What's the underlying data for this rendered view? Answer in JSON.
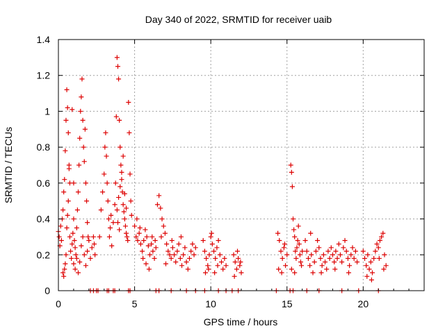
{
  "chart_data": {
    "type": "scatter",
    "title": "Day 340 of 2022, SRMTID for receiver uaib",
    "xlabel": "GPS time / hours",
    "ylabel": "SRMTID / TECUs",
    "xlim": [
      0,
      24
    ],
    "ylim": [
      0,
      1.4
    ],
    "xticks": [
      0,
      5,
      10,
      15,
      20
    ],
    "yticks": [
      0,
      0.2,
      0.4,
      0.6,
      0.8,
      1,
      1.2,
      1.4
    ],
    "xtick_labels": [
      "0",
      "5",
      "10",
      "15",
      "20"
    ],
    "ytick_labels": [
      "0",
      "0.2",
      "0.4",
      "0.6",
      "0.8",
      "1",
      "1.2",
      "1.4"
    ],
    "grid": true,
    "marker": "+",
    "color": "#dd0000",
    "series": [
      {
        "name": "SRMTID",
        "points": [
          [
            0.0,
            0.33
          ],
          [
            0.05,
            0.3
          ],
          [
            0.1,
            0.25
          ],
          [
            0.15,
            0.36
          ],
          [
            0.2,
            0.28
          ],
          [
            0.25,
            0.4
          ],
          [
            0.3,
            0.45
          ],
          [
            0.35,
            0.55
          ],
          [
            0.4,
            0.62
          ],
          [
            0.45,
            0.78
          ],
          [
            0.5,
            0.95
          ],
          [
            0.55,
            1.12
          ],
          [
            0.6,
            1.02
          ],
          [
            0.65,
            0.88
          ],
          [
            0.7,
            0.7
          ],
          [
            0.75,
            0.6
          ],
          [
            0.3,
            0.1
          ],
          [
            0.35,
            0.08
          ],
          [
            0.4,
            0.12
          ],
          [
            0.45,
            0.15
          ],
          [
            0.5,
            0.2
          ],
          [
            0.55,
            0.35
          ],
          [
            0.6,
            0.42
          ],
          [
            0.65,
            0.5
          ],
          [
            0.7,
            0.68
          ],
          [
            0.75,
            0.3
          ],
          [
            0.8,
            0.22
          ],
          [
            0.85,
            0.18
          ],
          [
            0.9,
            0.26
          ],
          [
            0.95,
            0.32
          ],
          [
            1.0,
            0.4
          ],
          [
            1.05,
            0.28
          ],
          [
            1.1,
            0.24
          ],
          [
            1.15,
            0.2
          ],
          [
            1.2,
            0.35
          ],
          [
            1.25,
            0.45
          ],
          [
            1.3,
            0.55
          ],
          [
            1.35,
            0.7
          ],
          [
            1.4,
            0.85
          ],
          [
            1.45,
            1.0
          ],
          [
            1.5,
            1.08
          ],
          [
            1.55,
            1.18
          ],
          [
            1.6,
            0.95
          ],
          [
            1.65,
            0.8
          ],
          [
            1.7,
            0.72
          ],
          [
            1.75,
            0.9
          ],
          [
            1.8,
            0.6
          ],
          [
            1.85,
            0.5
          ],
          [
            1.9,
            0.38
          ],
          [
            1.95,
            0.3
          ],
          [
            1.0,
            0.15
          ],
          [
            1.1,
            0.12
          ],
          [
            1.2,
            0.18
          ],
          [
            1.3,
            0.1
          ],
          [
            1.4,
            0.16
          ],
          [
            1.5,
            0.25
          ],
          [
            1.6,
            0.3
          ],
          [
            1.7,
            0.2
          ],
          [
            1.8,
            0.14
          ],
          [
            1.9,
            0.22
          ],
          [
            2.0,
            0.28
          ],
          [
            2.1,
            0.18
          ],
          [
            2.2,
            0.24
          ],
          [
            2.3,
            0.3
          ],
          [
            2.35,
            0.26
          ],
          [
            2.4,
            0.2
          ],
          [
            0.9,
            1.01
          ],
          [
            1.0,
            0.6
          ],
          [
            2.7,
            0.3
          ],
          [
            2.8,
            0.45
          ],
          [
            2.9,
            0.55
          ],
          [
            3.0,
            0.65
          ],
          [
            3.05,
            0.8
          ],
          [
            3.1,
            0.88
          ],
          [
            3.15,
            0.75
          ],
          [
            3.2,
            0.6
          ],
          [
            3.25,
            0.5
          ],
          [
            3.3,
            0.4
          ],
          [
            3.35,
            0.3
          ],
          [
            3.4,
            0.35
          ],
          [
            3.45,
            0.42
          ],
          [
            3.5,
            0.25
          ],
          [
            3.6,
            0.38
          ],
          [
            3.7,
            0.48
          ],
          [
            3.75,
            0.6
          ],
          [
            3.8,
            0.97
          ],
          [
            3.85,
            1.3
          ],
          [
            3.9,
            1.25
          ],
          [
            3.95,
            1.18
          ],
          [
            4.0,
            0.95
          ],
          [
            4.05,
            0.8
          ],
          [
            4.1,
            0.7
          ],
          [
            4.15,
            0.62
          ],
          [
            4.2,
            0.55
          ],
          [
            4.25,
            0.48
          ],
          [
            4.3,
            0.44
          ],
          [
            4.35,
            0.4
          ],
          [
            4.4,
            0.36
          ],
          [
            4.45,
            0.32
          ],
          [
            4.5,
            0.3
          ],
          [
            4.55,
            0.28
          ],
          [
            4.6,
            1.05
          ],
          [
            4.65,
            0.88
          ],
          [
            4.7,
            0.65
          ],
          [
            4.75,
            0.5
          ],
          [
            4.8,
            0.42
          ],
          [
            3.85,
            0.45
          ],
          [
            3.95,
            0.52
          ],
          [
            4.05,
            0.58
          ],
          [
            4.15,
            0.66
          ],
          [
            4.25,
            0.75
          ],
          [
            4.35,
            0.54
          ],
          [
            4.45,
            0.46
          ],
          [
            3.9,
            0.38
          ],
          [
            4.0,
            0.34
          ],
          [
            5.0,
            0.36
          ],
          [
            5.1,
            0.3
          ],
          [
            5.2,
            0.28
          ],
          [
            5.3,
            0.32
          ],
          [
            5.4,
            0.26
          ],
          [
            5.5,
            0.22
          ],
          [
            5.6,
            0.28
          ],
          [
            5.7,
            0.34
          ],
          [
            5.8,
            0.3
          ],
          [
            5.9,
            0.25
          ],
          [
            6.0,
            0.2
          ],
          [
            6.1,
            0.26
          ],
          [
            6.2,
            0.22
          ],
          [
            6.3,
            0.18
          ],
          [
            6.4,
            0.24
          ],
          [
            5.15,
            0.4
          ],
          [
            5.35,
            0.35
          ],
          [
            5.55,
            0.18
          ],
          [
            5.75,
            0.15
          ],
          [
            5.95,
            0.12
          ],
          [
            6.15,
            0.3
          ],
          [
            6.35,
            0.28
          ],
          [
            6.5,
            0.48
          ],
          [
            6.6,
            0.53
          ],
          [
            6.7,
            0.46
          ],
          [
            6.8,
            0.4
          ],
          [
            6.9,
            0.36
          ],
          [
            7.0,
            0.32
          ],
          [
            7.1,
            0.26
          ],
          [
            7.2,
            0.22
          ],
          [
            7.3,
            0.2
          ],
          [
            7.4,
            0.18
          ],
          [
            7.5,
            0.24
          ],
          [
            7.6,
            0.2
          ],
          [
            7.7,
            0.16
          ],
          [
            7.8,
            0.22
          ],
          [
            7.9,
            0.26
          ],
          [
            8.0,
            0.18
          ],
          [
            8.1,
            0.14
          ],
          [
            8.2,
            0.2
          ],
          [
            8.3,
            0.24
          ],
          [
            8.4,
            0.16
          ],
          [
            8.5,
            0.12
          ],
          [
            8.6,
            0.18
          ],
          [
            8.7,
            0.22
          ],
          [
            8.8,
            0.26
          ],
          [
            8.9,
            0.2
          ],
          [
            9.0,
            0.24
          ],
          [
            6.75,
            0.3
          ],
          [
            7.05,
            0.15
          ],
          [
            7.45,
            0.28
          ],
          [
            8.05,
            0.3
          ],
          [
            9.5,
            0.28
          ],
          [
            9.6,
            0.22
          ],
          [
            9.7,
            0.18
          ],
          [
            9.8,
            0.14
          ],
          [
            9.9,
            0.2
          ],
          [
            10.0,
            0.3
          ],
          [
            10.1,
            0.26
          ],
          [
            10.2,
            0.22
          ],
          [
            10.3,
            0.18
          ],
          [
            10.4,
            0.24
          ],
          [
            10.5,
            0.28
          ],
          [
            10.6,
            0.2
          ],
          [
            10.7,
            0.16
          ],
          [
            10.8,
            0.12
          ],
          [
            10.9,
            0.18
          ],
          [
            11.0,
            0.14
          ],
          [
            9.65,
            0.1
          ],
          [
            9.85,
            0.12
          ],
          [
            10.05,
            0.32
          ],
          [
            10.25,
            0.1
          ],
          [
            10.45,
            0.14
          ],
          [
            11.5,
            0.2
          ],
          [
            11.6,
            0.16
          ],
          [
            11.7,
            0.12
          ],
          [
            11.8,
            0.18
          ],
          [
            11.9,
            0.14
          ],
          [
            12.0,
            0.1
          ],
          [
            11.55,
            0.08
          ],
          [
            11.75,
            0.22
          ],
          [
            11.95,
            0.16
          ],
          [
            14.4,
            0.32
          ],
          [
            14.5,
            0.28
          ],
          [
            14.6,
            0.22
          ],
          [
            14.7,
            0.18
          ],
          [
            14.8,
            0.24
          ],
          [
            14.9,
            0.14
          ],
          [
            15.0,
            0.2
          ],
          [
            14.45,
            0.12
          ],
          [
            14.65,
            0.1
          ],
          [
            14.85,
            0.26
          ],
          [
            15.25,
            0.7
          ],
          [
            15.3,
            0.66
          ],
          [
            15.35,
            0.58
          ],
          [
            15.4,
            0.4
          ],
          [
            15.45,
            0.34
          ],
          [
            15.5,
            0.3
          ],
          [
            15.55,
            0.22
          ],
          [
            15.6,
            0.18
          ],
          [
            15.65,
            0.24
          ],
          [
            15.7,
            0.28
          ],
          [
            15.75,
            0.36
          ],
          [
            15.8,
            0.26
          ],
          [
            15.85,
            0.2
          ],
          [
            15.9,
            0.16
          ],
          [
            15.95,
            0.14
          ],
          [
            16.0,
            0.22
          ],
          [
            15.3,
            0.12
          ],
          [
            15.5,
            0.1
          ],
          [
            16.2,
            0.28
          ],
          [
            16.3,
            0.22
          ],
          [
            16.4,
            0.18
          ],
          [
            16.5,
            0.14
          ],
          [
            16.6,
            0.2
          ],
          [
            16.7,
            0.1
          ],
          [
            16.8,
            0.16
          ],
          [
            16.9,
            0.22
          ],
          [
            17.0,
            0.28
          ],
          [
            17.1,
            0.24
          ],
          [
            17.2,
            0.18
          ],
          [
            17.3,
            0.14
          ],
          [
            17.4,
            0.2
          ],
          [
            17.5,
            0.16
          ],
          [
            17.6,
            0.12
          ],
          [
            17.7,
            0.22
          ],
          [
            17.8,
            0.18
          ],
          [
            17.9,
            0.24
          ],
          [
            18.0,
            0.2
          ],
          [
            18.1,
            0.16
          ],
          [
            18.2,
            0.22
          ],
          [
            18.3,
            0.18
          ],
          [
            18.4,
            0.26
          ],
          [
            18.5,
            0.2
          ],
          [
            18.6,
            0.16
          ],
          [
            18.7,
            0.24
          ],
          [
            18.8,
            0.28
          ],
          [
            18.9,
            0.22
          ],
          [
            19.0,
            0.18
          ],
          [
            19.1,
            0.14
          ],
          [
            19.2,
            0.2
          ],
          [
            19.3,
            0.24
          ],
          [
            19.4,
            0.18
          ],
          [
            19.5,
            0.22
          ],
          [
            19.6,
            0.16
          ],
          [
            16.55,
            0.32
          ],
          [
            17.25,
            0.1
          ],
          [
            18.15,
            0.12
          ],
          [
            19.05,
            0.1
          ],
          [
            20.0,
            0.22
          ],
          [
            20.1,
            0.18
          ],
          [
            20.2,
            0.14
          ],
          [
            20.3,
            0.2
          ],
          [
            20.4,
            0.12
          ],
          [
            20.5,
            0.16
          ],
          [
            20.6,
            0.1
          ],
          [
            20.7,
            0.18
          ],
          [
            20.8,
            0.22
          ],
          [
            20.9,
            0.26
          ],
          [
            21.0,
            0.24
          ],
          [
            21.1,
            0.28
          ],
          [
            21.2,
            0.3
          ],
          [
            21.3,
            0.32
          ],
          [
            21.4,
            0.2
          ],
          [
            21.5,
            0.14
          ],
          [
            20.25,
            0.08
          ],
          [
            20.55,
            0.06
          ],
          [
            21.05,
            0.18
          ],
          [
            21.35,
            0.12
          ],
          [
            2.1,
            0.0
          ],
          [
            2.3,
            0.0
          ],
          [
            2.5,
            0.0
          ],
          [
            2.6,
            0.0
          ],
          [
            3.2,
            0.0
          ],
          [
            3.3,
            0.0
          ],
          [
            3.6,
            0.0
          ],
          [
            3.7,
            0.0
          ],
          [
            4.6,
            0.0
          ],
          [
            4.7,
            0.0
          ],
          [
            6.4,
            0.0
          ],
          [
            6.6,
            0.0
          ],
          [
            7.4,
            0.0
          ],
          [
            8.4,
            0.0
          ],
          [
            9.0,
            0.0
          ],
          [
            9.6,
            0.0
          ],
          [
            10.5,
            0.0
          ],
          [
            11.0,
            0.0
          ],
          [
            11.4,
            0.0
          ],
          [
            11.8,
            0.0
          ],
          [
            14.3,
            0.0
          ],
          [
            15.2,
            0.0
          ],
          [
            15.4,
            0.0
          ],
          [
            16.3,
            0.0
          ],
          [
            17.1,
            0.0
          ],
          [
            18.6,
            0.0
          ],
          [
            19.7,
            0.0
          ],
          [
            21.0,
            0.0
          ]
        ]
      }
    ]
  }
}
